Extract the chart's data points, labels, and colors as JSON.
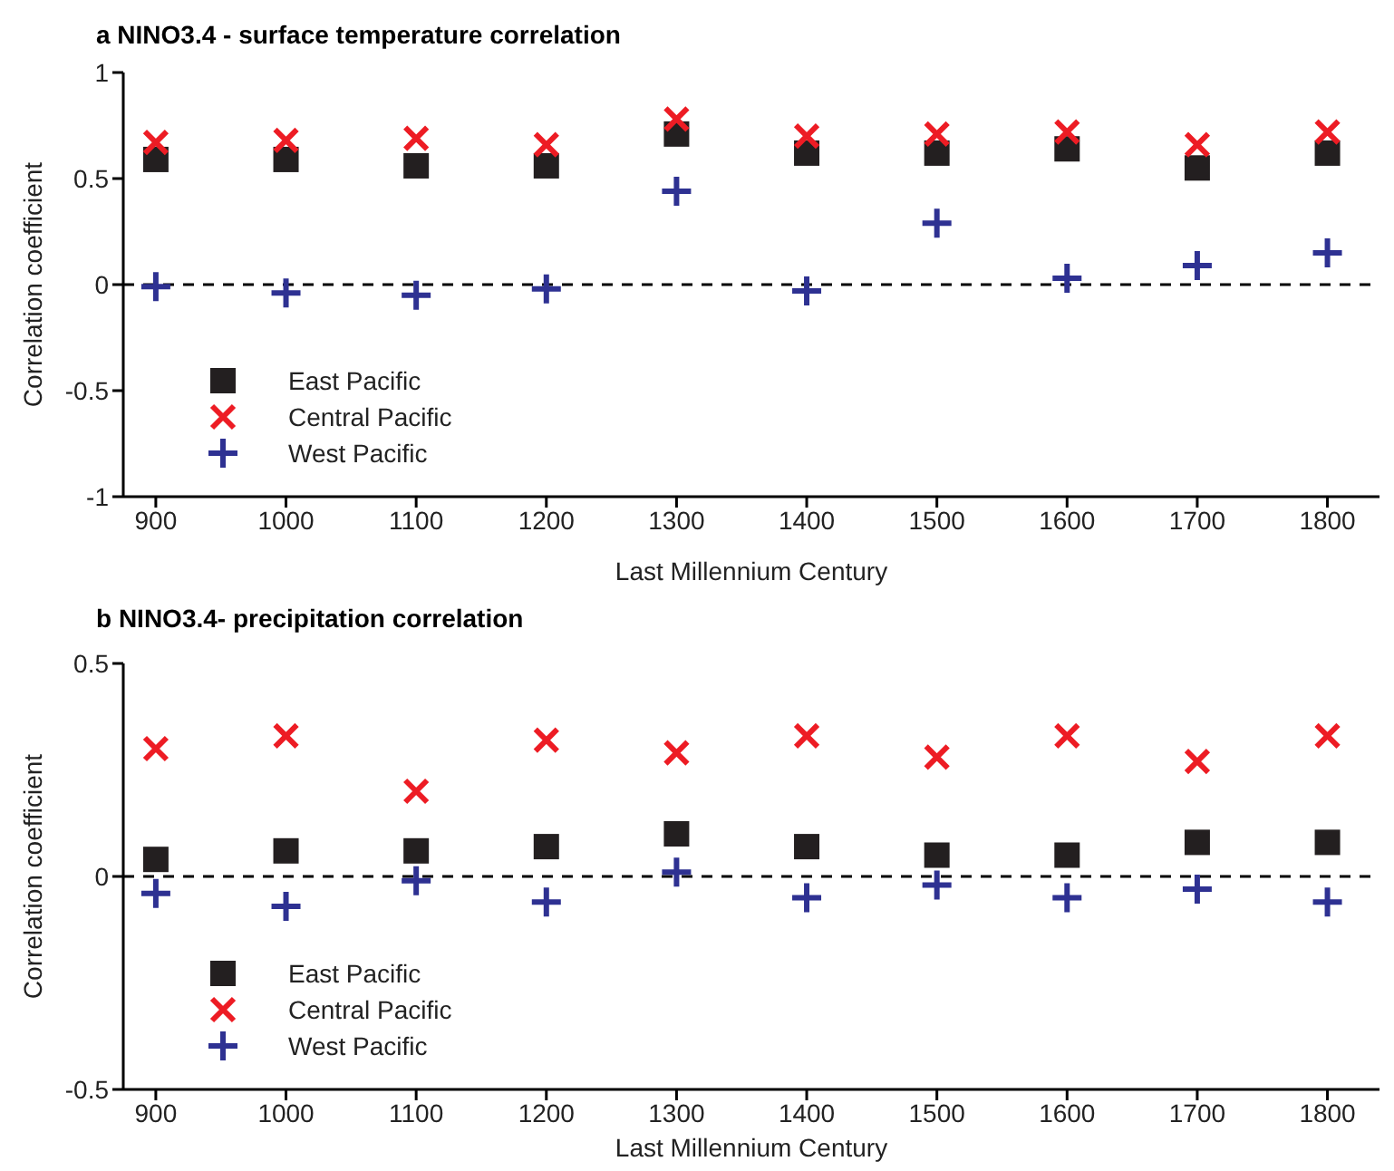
{
  "chart_data": [
    {
      "type": "scatter",
      "title": "a  NINO3.4 - surface temperature correlation",
      "xlabel": "Last Millennium Century",
      "ylabel": "Correlation coefficient",
      "x": [
        900,
        1000,
        1100,
        1200,
        1300,
        1400,
        1500,
        1600,
        1700,
        1800
      ],
      "series": [
        {
          "name": "East Pacific",
          "color": "#231f20",
          "marker": "square",
          "values": [
            0.59,
            0.59,
            0.56,
            0.56,
            0.71,
            0.62,
            0.62,
            0.64,
            0.55,
            0.62
          ]
        },
        {
          "name": "Central Pacific",
          "color": "#ed1c24",
          "marker": "x",
          "values": [
            0.67,
            0.68,
            0.69,
            0.66,
            0.78,
            0.7,
            0.71,
            0.72,
            0.66,
            0.72
          ]
        },
        {
          "name": "West Pacific",
          "color": "#2e3192",
          "marker": "cross",
          "values": [
            -0.01,
            -0.04,
            -0.05,
            -0.02,
            0.44,
            -0.03,
            0.29,
            0.03,
            0.09,
            0.15
          ]
        }
      ],
      "xlim": [
        875,
        1840
      ],
      "xticks": [
        900,
        1000,
        1100,
        1200,
        1300,
        1400,
        1500,
        1600,
        1700,
        1800
      ],
      "ylim": [
        -1,
        1
      ],
      "yticks": [
        -1,
        -0.5,
        0,
        0.5,
        1
      ],
      "ref_lines": [
        {
          "axis": "y",
          "value": 0,
          "line_style": "dashed",
          "color": "#000000"
        }
      ],
      "grid": false,
      "legend": "bottom left"
    },
    {
      "type": "scatter",
      "title": "b  NINO3.4- precipitation correlation",
      "xlabel": "Last Millennium Century",
      "ylabel": "Correlation coefficient",
      "x": [
        900,
        1000,
        1100,
        1200,
        1300,
        1400,
        1500,
        1600,
        1700,
        1800
      ],
      "series": [
        {
          "name": "East Pacific",
          "color": "#231f20",
          "marker": "square",
          "values": [
            0.04,
            0.06,
            0.06,
            0.07,
            0.1,
            0.07,
            0.05,
            0.05,
            0.08,
            0.08
          ]
        },
        {
          "name": "Central Pacific",
          "color": "#ed1c24",
          "marker": "x",
          "values": [
            0.3,
            0.33,
            0.2,
            0.32,
            0.29,
            0.33,
            0.28,
            0.33,
            0.27,
            0.33
          ]
        },
        {
          "name": "West Pacific",
          "color": "#2e3192",
          "marker": "cross",
          "values": [
            -0.04,
            -0.07,
            -0.01,
            -0.06,
            0.01,
            -0.05,
            -0.02,
            -0.05,
            -0.03,
            -0.06
          ]
        }
      ],
      "xlim": [
        875,
        1840
      ],
      "xticks": [
        900,
        1000,
        1100,
        1200,
        1300,
        1400,
        1500,
        1600,
        1700,
        1800
      ],
      "ylim": [
        -0.5,
        0.5
      ],
      "yticks": [
        -0.5,
        0,
        0.5
      ],
      "ref_lines": [
        {
          "axis": "y",
          "value": 0,
          "line_style": "dashed",
          "color": "#000000"
        }
      ],
      "grid": false,
      "legend": "bottom left"
    }
  ]
}
